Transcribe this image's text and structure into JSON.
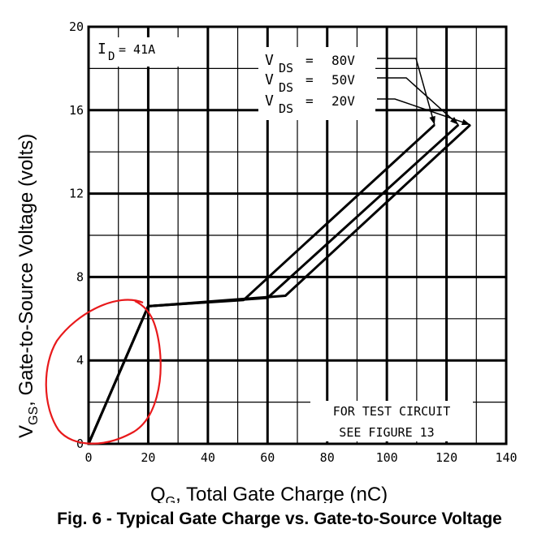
{
  "figure_caption": "Fig. 6 - Typical Gate Charge vs. Gate-to-Source Voltage",
  "chart_data": {
    "type": "line",
    "title": "",
    "xlabel_main": "Q",
    "xlabel_sub": "G",
    "xlabel_rest": ", Total Gate Charge (nC)",
    "ylabel_main": "V",
    "ylabel_sub": "GS",
    "ylabel_rest": ", Gate-to-Source Voltage (volts)",
    "xlim": [
      0,
      140
    ],
    "ylim": [
      0,
      20
    ],
    "x_ticks": [
      0,
      20,
      40,
      60,
      80,
      100,
      120,
      140
    ],
    "y_ticks": [
      0,
      4,
      8,
      12,
      16,
      20
    ],
    "grid": true,
    "annotation_id": {
      "main": "I",
      "sub": "D",
      "rest": " = 41A"
    },
    "test_note_1": "FOR TEST CIRCUIT",
    "test_note_2": "SEE FIGURE 13",
    "series": [
      {
        "name": "80V",
        "label_main": "V",
        "label_sub": "DS",
        "label_eq": "=",
        "label_value": "80V",
        "points": [
          [
            0,
            0
          ],
          [
            20,
            6.6
          ],
          [
            52,
            6.9
          ],
          [
            116,
            15.3
          ]
        ]
      },
      {
        "name": "50V",
        "label_main": "V",
        "label_sub": "DS",
        "label_eq": "=",
        "label_value": "50V",
        "points": [
          [
            0,
            0
          ],
          [
            20,
            6.6
          ],
          [
            60,
            7.0
          ],
          [
            124,
            15.3
          ]
        ]
      },
      {
        "name": "20V",
        "label_main": "V",
        "label_sub": "DS",
        "label_eq": "=",
        "label_value": "20V",
        "points": [
          [
            0,
            0
          ],
          [
            20,
            6.6
          ],
          [
            66,
            7.1
          ],
          [
            128,
            15.3
          ]
        ]
      }
    ],
    "highlight_color": "#e8191b",
    "line_color": "#000000"
  }
}
